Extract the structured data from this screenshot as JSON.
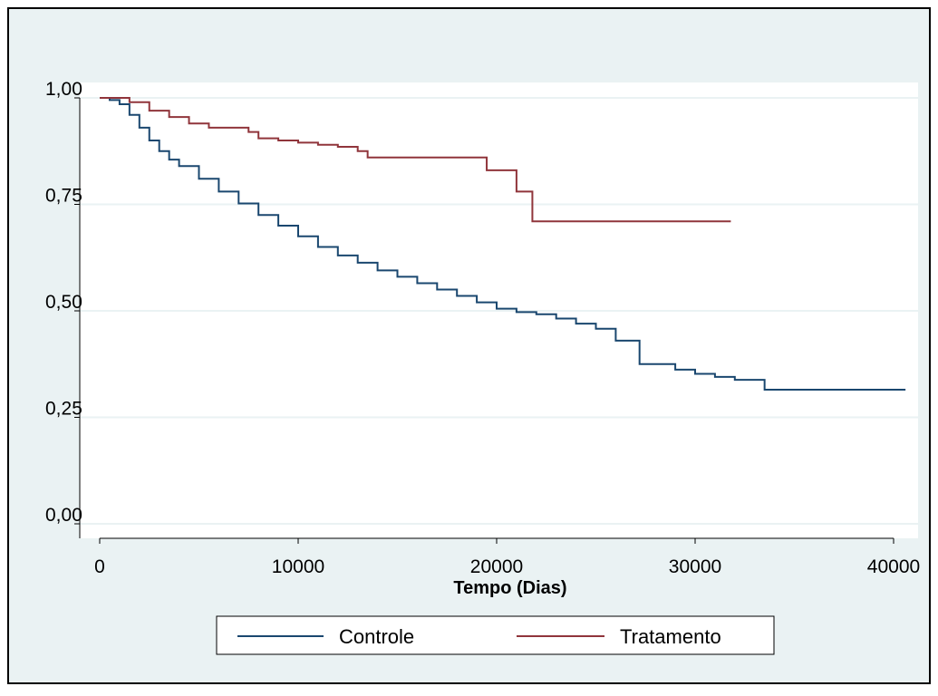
{
  "chart_data": {
    "type": "line",
    "step": true,
    "title": "",
    "xlabel": "Tempo (Dias)",
    "ylabel": "",
    "xlim": [
      0,
      41000
    ],
    "ylim": [
      0,
      1
    ],
    "xticks": [
      0,
      10000,
      20000,
      30000,
      40000
    ],
    "xtick_labels": [
      "0",
      "10000",
      "20000",
      "30000",
      "40000"
    ],
    "yticks": [
      0,
      0.25,
      0.5,
      0.75,
      1
    ],
    "ytick_labels": [
      "0,00",
      "0,25",
      "0,50",
      "0,75",
      "1,00"
    ],
    "grid": true,
    "legend_position": "bottom",
    "colors": {
      "background": "#eaf2f3",
      "plot_background": "#ffffff",
      "gridline": "#eaf2f3"
    },
    "series": [
      {
        "name": "Controle",
        "color": "#1a476f",
        "x": [
          0,
          500,
          1000,
          1500,
          2000,
          2500,
          3000,
          3500,
          4000,
          5000,
          6000,
          7000,
          8000,
          9000,
          10000,
          11000,
          12000,
          13000,
          14000,
          15000,
          16000,
          17000,
          18000,
          19000,
          20000,
          21000,
          22000,
          23000,
          24000,
          25000,
          26000,
          27200,
          28000,
          29000,
          30000,
          31000,
          32000,
          33500,
          36000,
          40600
        ],
        "y": [
          1.0,
          0.995,
          0.985,
          0.96,
          0.93,
          0.9,
          0.875,
          0.855,
          0.84,
          0.81,
          0.78,
          0.752,
          0.725,
          0.7,
          0.675,
          0.65,
          0.63,
          0.613,
          0.595,
          0.58,
          0.565,
          0.55,
          0.535,
          0.52,
          0.505,
          0.497,
          0.492,
          0.482,
          0.47,
          0.458,
          0.43,
          0.375,
          0.375,
          0.362,
          0.352,
          0.345,
          0.338,
          0.315,
          0.315,
          0.315
        ]
      },
      {
        "name": "Tratamento",
        "color": "#90353b",
        "x": [
          0,
          1500,
          2500,
          3500,
          4500,
          5500,
          7500,
          8000,
          9000,
          10000,
          11000,
          12000,
          13000,
          13500,
          14000,
          19000,
          19500,
          20000,
          20800,
          21000,
          21500,
          21800,
          23000,
          31800
        ],
        "y": [
          1.0,
          0.99,
          0.97,
          0.955,
          0.94,
          0.93,
          0.92,
          0.905,
          0.9,
          0.895,
          0.89,
          0.885,
          0.875,
          0.86,
          0.86,
          0.86,
          0.83,
          0.83,
          0.83,
          0.78,
          0.78,
          0.71,
          0.71,
          0.71
        ]
      }
    ]
  }
}
